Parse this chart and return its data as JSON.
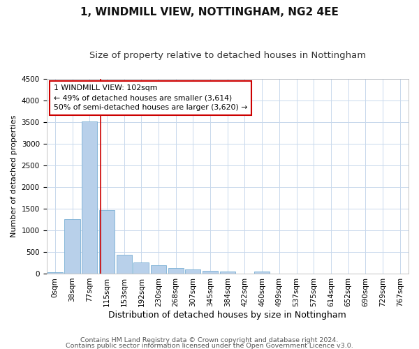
{
  "title": "1, WINDMILL VIEW, NOTTINGHAM, NG2 4EE",
  "subtitle": "Size of property relative to detached houses in Nottingham",
  "xlabel": "Distribution of detached houses by size in Nottingham",
  "ylabel": "Number of detached properties",
  "footer_line1": "Contains HM Land Registry data © Crown copyright and database right 2024.",
  "footer_line2": "Contains public sector information licensed under the Open Government Licence v3.0.",
  "bar_labels": [
    "0sqm",
    "38sqm",
    "77sqm",
    "115sqm",
    "153sqm",
    "192sqm",
    "230sqm",
    "268sqm",
    "307sqm",
    "345sqm",
    "384sqm",
    "422sqm",
    "460sqm",
    "499sqm",
    "537sqm",
    "575sqm",
    "614sqm",
    "652sqm",
    "690sqm",
    "729sqm",
    "767sqm"
  ],
  "bar_values": [
    25,
    1250,
    3520,
    1470,
    430,
    250,
    200,
    130,
    95,
    70,
    45,
    0,
    45,
    0,
    0,
    0,
    0,
    0,
    0,
    0,
    0
  ],
  "bar_color": "#b8d0ea",
  "bar_edge_color": "#7aafd4",
  "ylim": [
    0,
    4500
  ],
  "yticks": [
    0,
    500,
    1000,
    1500,
    2000,
    2500,
    3000,
    3500,
    4000,
    4500
  ],
  "annotation_title": "1 WINDMILL VIEW: 102sqm",
  "annotation_line2": "← 49% of detached houses are smaller (3,614)",
  "annotation_line3": "50% of semi-detached houses are larger (3,620) →",
  "annotation_box_color": "#ffffff",
  "annotation_border_color": "#cc0000",
  "vline_color": "#cc0000",
  "background_color": "#ffffff",
  "grid_color": "#c8d8ec",
  "title_fontsize": 11,
  "subtitle_fontsize": 9.5,
  "xlabel_fontsize": 9,
  "ylabel_fontsize": 8,
  "tick_fontsize": 7.5,
  "annotation_fontsize": 7.8,
  "footer_fontsize": 6.8
}
